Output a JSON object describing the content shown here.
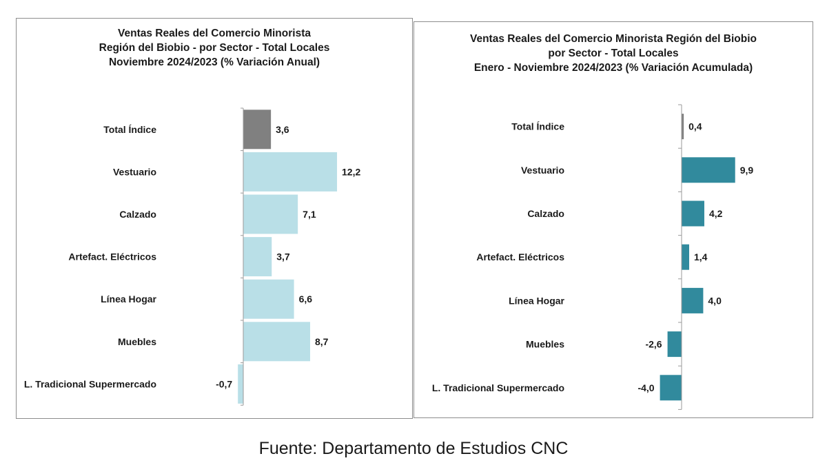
{
  "chart_data": [
    {
      "type": "bar",
      "orientation": "horizontal",
      "title_lines": [
        "Ventas Reales del Comercio Minorista",
        "Región del Biobio - por Sector - Total Locales",
        "Noviembre 2024/2023 (% Variación Anual)"
      ],
      "categories": [
        "Total Índice",
        "Vestuario",
        "Calzado",
        "Artefact. Eléctricos",
        "Línea Hogar",
        "Muebles",
        "L. Tradicional Supermercado"
      ],
      "values": [
        3.6,
        12.2,
        7.1,
        3.7,
        6.6,
        8.7,
        -0.7
      ],
      "value_labels": [
        "3,6",
        "12,2",
        "7,1",
        "3,7",
        "6,6",
        "8,7",
        "-0,7"
      ],
      "bar_colors": [
        "#808080",
        "#b9dfe7",
        "#b9dfe7",
        "#b9dfe7",
        "#b9dfe7",
        "#b9dfe7",
        "#b9dfe7"
      ],
      "xlim": [
        -0.7,
        12.2
      ],
      "grid": false,
      "legend": "none"
    },
    {
      "type": "bar",
      "orientation": "horizontal",
      "title_lines": [
        "Ventas Reales del Comercio Minorista Región del Biobio",
        "por Sector - Total Locales",
        "Enero - Noviembre 2024/2023  (% Variación Acumulada)"
      ],
      "categories": [
        "Total Índice",
        "Vestuario",
        "Calzado",
        "Artefact. Eléctricos",
        "Línea Hogar",
        "Muebles",
        "L. Tradicional Supermercado"
      ],
      "values": [
        0.4,
        9.9,
        4.2,
        1.4,
        4.0,
        -2.6,
        -4.0
      ],
      "value_labels": [
        "0,4",
        "9,9",
        "4,2",
        "1,4",
        "4,0",
        "-2,6",
        "-4,0"
      ],
      "bar_colors": [
        "#808080",
        "#318a9d",
        "#318a9d",
        "#318a9d",
        "#318a9d",
        "#318a9d",
        "#318a9d"
      ],
      "xlim": [
        -4.0,
        9.9
      ],
      "grid": false,
      "legend": "none"
    }
  ],
  "source_text": "Fuente: Departamento de Estudios CNC"
}
